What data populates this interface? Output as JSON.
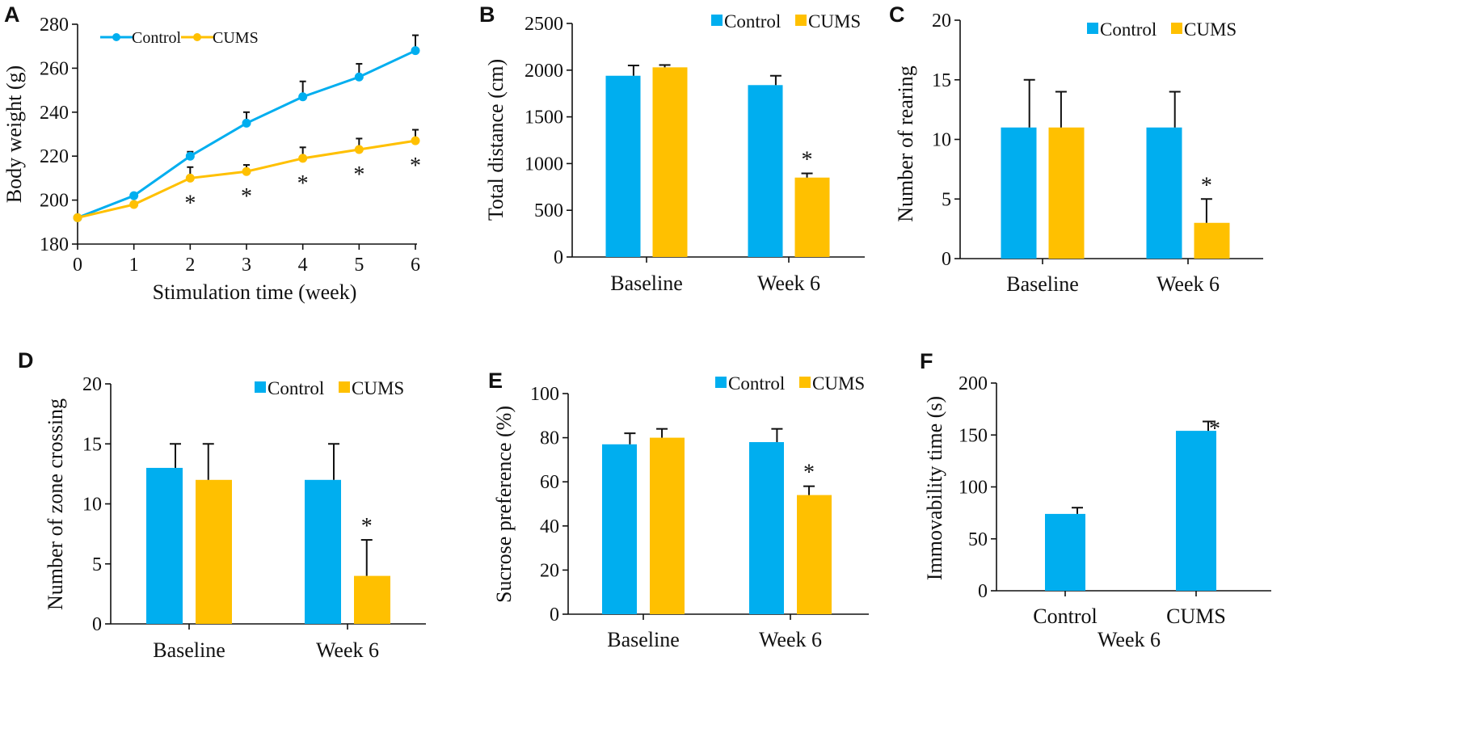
{
  "colors": {
    "control": "#00AEEF",
    "cums": "#FFC000"
  },
  "chart_data": [
    {
      "panel": "A",
      "type": "line",
      "xlabel": "Stimulation time (week)",
      "ylabel": "Body weight (g)",
      "x": [
        0,
        1,
        2,
        3,
        4,
        5,
        6
      ],
      "xticks": [
        "0",
        "1",
        "2",
        "3",
        "4",
        "5",
        "6"
      ],
      "ylim": [
        180,
        280
      ],
      "yticks": [
        180,
        200,
        220,
        240,
        260,
        280
      ],
      "legend_position": "top-left",
      "series": [
        {
          "name": "Control",
          "color": "#00AEEF",
          "values": [
            192,
            202,
            220,
            235,
            247,
            256,
            268
          ],
          "errors": [
            0,
            1,
            2,
            5,
            7,
            6,
            7
          ]
        },
        {
          "name": "CUMS",
          "color": "#FFC000",
          "values": [
            192,
            198,
            210,
            213,
            219,
            223,
            227
          ],
          "errors": [
            0,
            0,
            5,
            3,
            5,
            5,
            5
          ]
        }
      ],
      "significance": [
        {
          "x": 2,
          "label": "*"
        },
        {
          "x": 3,
          "label": "*"
        },
        {
          "x": 4,
          "label": "*"
        },
        {
          "x": 5,
          "label": "*"
        },
        {
          "x": 6,
          "label": "*"
        }
      ]
    },
    {
      "panel": "B",
      "type": "bar",
      "ylabel": "Total distance (cm)",
      "categories": [
        "Baseline",
        "Week 6"
      ],
      "ylim": [
        0,
        2500
      ],
      "yticks": [
        0,
        500,
        1000,
        1500,
        2000,
        2500
      ],
      "legend_position": "top-right",
      "series": [
        {
          "name": "Control",
          "color": "#00AEEF",
          "values": [
            1940,
            1840
          ],
          "errors": [
            110,
            100
          ]
        },
        {
          "name": "CUMS",
          "color": "#FFC000",
          "values": [
            2030,
            850
          ],
          "errors": [
            25,
            45
          ]
        }
      ],
      "significance": [
        {
          "category": 1,
          "series": 1,
          "label": "*"
        }
      ]
    },
    {
      "panel": "C",
      "type": "bar",
      "ylabel": "Number of rearing",
      "categories": [
        "Baseline",
        "Week 6"
      ],
      "ylim": [
        0,
        20
      ],
      "yticks": [
        0,
        5,
        10,
        15,
        20
      ],
      "legend_position": "top-right",
      "series": [
        {
          "name": "Control",
          "color": "#00AEEF",
          "values": [
            11,
            11
          ],
          "errors": [
            4,
            3
          ]
        },
        {
          "name": "CUMS",
          "color": "#FFC000",
          "values": [
            11,
            3
          ],
          "errors": [
            3,
            2
          ]
        }
      ],
      "significance": [
        {
          "category": 1,
          "series": 1,
          "label": "*"
        }
      ]
    },
    {
      "panel": "D",
      "type": "bar",
      "ylabel": "Number of zone crossing",
      "categories": [
        "Baseline",
        "Week 6"
      ],
      "ylim": [
        0,
        20
      ],
      "yticks": [
        0,
        5,
        10,
        15,
        20
      ],
      "legend_position": "top-right",
      "series": [
        {
          "name": "Control",
          "color": "#00AEEF",
          "values": [
            13,
            12
          ],
          "errors": [
            2,
            3
          ]
        },
        {
          "name": "CUMS",
          "color": "#FFC000",
          "values": [
            12,
            4
          ],
          "errors": [
            3,
            3
          ]
        }
      ],
      "significance": [
        {
          "category": 1,
          "series": 1,
          "label": "*"
        }
      ]
    },
    {
      "panel": "E",
      "type": "bar",
      "ylabel": "Sucrose preference (%)",
      "categories": [
        "Baseline",
        "Week 6"
      ],
      "ylim": [
        0,
        100
      ],
      "yticks": [
        0,
        20,
        40,
        60,
        80,
        100
      ],
      "legend_position": "top-right",
      "series": [
        {
          "name": "Control",
          "color": "#00AEEF",
          "values": [
            77,
            78
          ],
          "errors": [
            5,
            6
          ]
        },
        {
          "name": "CUMS",
          "color": "#FFC000",
          "values": [
            80,
            54
          ],
          "errors": [
            4,
            4
          ]
        }
      ],
      "significance": [
        {
          "category": 1,
          "series": 1,
          "label": "*"
        }
      ]
    },
    {
      "panel": "F",
      "type": "bar",
      "ylabel": "Immovability time (s)",
      "xlabel": "Week 6",
      "categories": [
        "Control",
        "CUMS"
      ],
      "ylim": [
        0,
        200
      ],
      "yticks": [
        0,
        50,
        100,
        150,
        200
      ],
      "series": [
        {
          "color": "#00AEEF",
          "values": [
            74,
            154
          ],
          "errors": [
            6,
            9
          ]
        }
      ],
      "significance": [
        {
          "category": 1,
          "series": 0,
          "label": "*"
        }
      ]
    }
  ]
}
